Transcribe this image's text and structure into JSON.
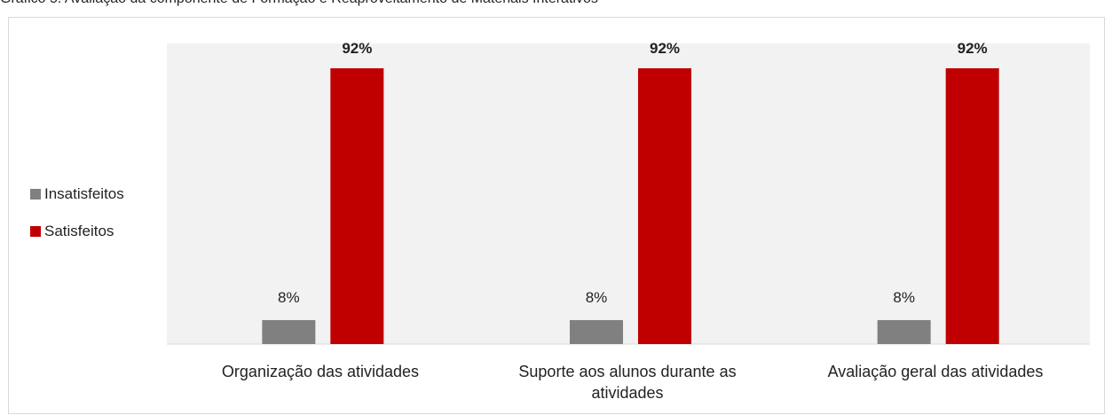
{
  "caption": "Gráfico 5. Avaliação da componente de Formação e Reaproveitamento de Materiais Interativos",
  "colors": {
    "insatisfeitos": "#808080",
    "satisfeitos": "#c00000",
    "plot_bg": "#f2f2f2"
  },
  "chart_data": {
    "type": "bar",
    "categories": [
      "Organização das atividades",
      "Suporte aos alunos durante as atividades",
      "Avaliação geral das atividades"
    ],
    "series": [
      {
        "name": "Insatisfeitos",
        "values": [
          8,
          8,
          8
        ],
        "labels": [
          "8%",
          "8%",
          "8%"
        ]
      },
      {
        "name": "Satisfeitos",
        "values": [
          92,
          92,
          92
        ],
        "labels": [
          "92%",
          "92%",
          "92%"
        ]
      }
    ],
    "ylim": [
      0,
      100
    ],
    "legend_position": "left",
    "grid": false
  }
}
